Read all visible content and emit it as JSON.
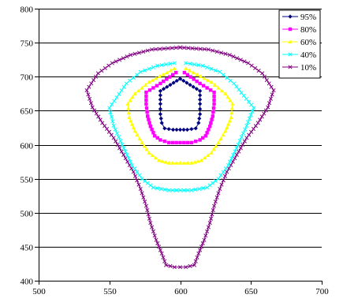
{
  "chart_data": {
    "type": "line",
    "title": "",
    "xlabel": "",
    "ylabel": "",
    "xlim": [
      500,
      700
    ],
    "ylim": [
      400,
      800
    ],
    "x_ticks": [
      500,
      550,
      600,
      650,
      700
    ],
    "y_ticks": [
      400,
      450,
      500,
      550,
      600,
      650,
      700,
      750,
      800
    ],
    "x_tick_labels": [
      "500",
      "550",
      "600",
      "650",
      "700"
    ],
    "y_tick_labels": [
      "400",
      "450",
      "500",
      "550",
      "600",
      "650",
      "700",
      "750",
      "800"
    ],
    "grid": "horizontal",
    "legend_position": "top-right",
    "series": [
      {
        "name": "95%",
        "color": "#000080",
        "marker": "diamond",
        "points": [
          [
            600,
            697
          ],
          [
            586,
            679
          ],
          [
            586,
            660
          ],
          [
            586,
            645
          ],
          [
            587,
            632
          ],
          [
            589,
            624
          ],
          [
            595,
            622
          ],
          [
            600,
            622
          ],
          [
            605,
            622
          ],
          [
            611,
            624
          ],
          [
            613,
            632
          ],
          [
            614,
            645
          ],
          [
            614,
            660
          ],
          [
            614,
            679
          ],
          [
            600,
            697
          ]
        ]
      },
      {
        "name": "80%",
        "color": "#ff00ff",
        "marker": "square",
        "points": [
          [
            597,
            706
          ],
          [
            586,
            690
          ],
          [
            576,
            677
          ],
          [
            576,
            660
          ],
          [
            577,
            642
          ],
          [
            579,
            627
          ],
          [
            582,
            613
          ],
          [
            586,
            607
          ],
          [
            592,
            603
          ],
          [
            600,
            603
          ],
          [
            608,
            603
          ],
          [
            614,
            607
          ],
          [
            618,
            613
          ],
          [
            621,
            627
          ],
          [
            623,
            642
          ],
          [
            624,
            660
          ],
          [
            624,
            677
          ],
          [
            614,
            690
          ],
          [
            603,
            706
          ]
        ]
      },
      {
        "name": "60%",
        "color": "#ffff00",
        "marker": "triangle",
        "points": [
          [
            596,
            712
          ],
          [
            588,
            703
          ],
          [
            578,
            692
          ],
          [
            568,
            675
          ],
          [
            563,
            660
          ],
          [
            564,
            640
          ],
          [
            568,
            620
          ],
          [
            573,
            603
          ],
          [
            578,
            588
          ],
          [
            585,
            577
          ],
          [
            592,
            573
          ],
          [
            600,
            573
          ],
          [
            608,
            573
          ],
          [
            615,
            577
          ],
          [
            622,
            588
          ],
          [
            627,
            603
          ],
          [
            632,
            620
          ],
          [
            636,
            640
          ],
          [
            637,
            660
          ],
          [
            632,
            675
          ],
          [
            622,
            692
          ],
          [
            612,
            703
          ],
          [
            604,
            712
          ]
        ]
      },
      {
        "name": "40%",
        "color": "#00ffff",
        "marker": "x",
        "points": [
          [
            596,
            720
          ],
          [
            584,
            716
          ],
          [
            572,
            707
          ],
          [
            562,
            690
          ],
          [
            550,
            654
          ],
          [
            553,
            628
          ],
          [
            559,
            600
          ],
          [
            566,
            570
          ],
          [
            573,
            550
          ],
          [
            581,
            537
          ],
          [
            592,
            533
          ],
          [
            600,
            533
          ],
          [
            608,
            533
          ],
          [
            619,
            537
          ],
          [
            627,
            550
          ],
          [
            634,
            570
          ],
          [
            641,
            600
          ],
          [
            647,
            628
          ],
          [
            652,
            654
          ],
          [
            638,
            690
          ],
          [
            628,
            707
          ],
          [
            616,
            716
          ],
          [
            604,
            720
          ]
        ]
      },
      {
        "name": "10%",
        "color": "#800080",
        "marker": "x",
        "points": [
          [
            600,
            743
          ],
          [
            580,
            740
          ],
          [
            565,
            732
          ],
          [
            552,
            720
          ],
          [
            542,
            705
          ],
          [
            534,
            680
          ],
          [
            538,
            655
          ],
          [
            545,
            632
          ],
          [
            553,
            610
          ],
          [
            560,
            585
          ],
          [
            567,
            560
          ],
          [
            572,
            535
          ],
          [
            576,
            510
          ],
          [
            579,
            485
          ],
          [
            583,
            460
          ],
          [
            587,
            440
          ],
          [
            590,
            423
          ],
          [
            596,
            420
          ],
          [
            600,
            420
          ],
          [
            604,
            420
          ],
          [
            610,
            423
          ],
          [
            613,
            440
          ],
          [
            617,
            460
          ],
          [
            621,
            485
          ],
          [
            624,
            510
          ],
          [
            628,
            535
          ],
          [
            633,
            560
          ],
          [
            640,
            585
          ],
          [
            647,
            610
          ],
          [
            655,
            632
          ],
          [
            662,
            655
          ],
          [
            666,
            680
          ],
          [
            658,
            705
          ],
          [
            648,
            720
          ],
          [
            635,
            732
          ],
          [
            620,
            740
          ],
          [
            600,
            743
          ]
        ]
      }
    ]
  }
}
